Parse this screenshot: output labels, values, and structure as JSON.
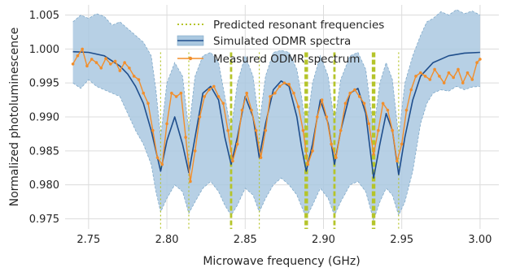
{
  "chart_data": {
    "type": "line",
    "xlabel": "Microwave frequency (GHz)",
    "ylabel": "Normalized photoluminescence",
    "xlim": [
      2.735,
      3.012
    ],
    "ylim": [
      0.9735,
      1.0065
    ],
    "x_ticks": [
      2.75,
      2.8,
      2.85,
      2.9,
      2.95,
      3.0
    ],
    "x_tick_labels": [
      "2.75",
      "2.80",
      "2.85",
      "2.90",
      "2.95",
      "3.00"
    ],
    "y_ticks": [
      0.975,
      0.98,
      0.985,
      0.99,
      0.995,
      1.0,
      1.005
    ],
    "y_tick_labels": [
      "0.975",
      "0.980",
      "0.985",
      "0.990",
      "0.995",
      "1.000",
      "1.005"
    ],
    "grid": true,
    "legend_position": "top-center",
    "legend": [
      {
        "label": "Predicted resonant frequencies",
        "style": "dotted",
        "color": "#b5c42a"
      },
      {
        "label": "Simulated ODMR spectra",
        "style": "band",
        "color": "#aac8e0"
      },
      {
        "label": "Measured ODMR spectrum",
        "style": "line",
        "color": "#f28e2b"
      }
    ],
    "colors": {
      "simulated_line": "#1f4e8c",
      "simulated_band": "#aac8e0",
      "band_edge": "#7fa9c9",
      "measured": "#f28e2b",
      "resonance": "#b5c42a",
      "grid": "#dcdcdc"
    },
    "series": [
      {
        "name": "Predicted resonant frequencies",
        "kind": "vlines",
        "x": [
          2.796,
          2.814,
          2.841,
          2.859,
          2.889,
          2.907,
          2.932,
          2.948
        ],
        "weight": [
          1,
          1,
          2,
          1,
          3,
          2,
          3,
          1
        ],
        "ymin": 0.9735,
        "ymax": 0.9995
      },
      {
        "name": "Simulated ODMR spectra",
        "kind": "curve",
        "x": [
          2.74,
          2.75,
          2.76,
          2.77,
          2.775,
          2.78,
          2.785,
          2.79,
          2.793,
          2.796,
          2.8,
          2.805,
          2.81,
          2.814,
          2.818,
          2.823,
          2.828,
          2.833,
          2.837,
          2.841,
          2.845,
          2.85,
          2.855,
          2.859,
          2.863,
          2.868,
          2.873,
          2.878,
          2.883,
          2.886,
          2.889,
          2.893,
          2.898,
          2.903,
          2.907,
          2.911,
          2.917,
          2.922,
          2.927,
          2.932,
          2.936,
          2.94,
          2.944,
          2.948,
          2.952,
          2.957,
          2.962,
          2.97,
          2.98,
          2.99,
          3.0
        ],
        "y": [
          0.9996,
          0.9995,
          0.999,
          0.9975,
          0.9963,
          0.9945,
          0.992,
          0.988,
          0.985,
          0.982,
          0.9865,
          0.99,
          0.986,
          0.9818,
          0.987,
          0.9935,
          0.9945,
          0.9925,
          0.987,
          0.983,
          0.987,
          0.993,
          0.99,
          0.984,
          0.989,
          0.994,
          0.9953,
          0.9945,
          0.99,
          0.9855,
          0.982,
          0.986,
          0.9925,
          0.989,
          0.983,
          0.988,
          0.9935,
          0.9942,
          0.9905,
          0.981,
          0.986,
          0.9905,
          0.988,
          0.9815,
          0.987,
          0.9925,
          0.996,
          0.998,
          0.999,
          0.9994,
          0.9995
        ]
      },
      {
        "name": "Simulated band upper",
        "kind": "band_upper",
        "x": [
          2.74,
          2.745,
          2.75,
          2.755,
          2.76,
          2.765,
          2.77,
          2.775,
          2.78,
          2.785,
          2.79,
          2.793,
          2.796,
          2.8,
          2.805,
          2.81,
          2.814,
          2.818,
          2.823,
          2.828,
          2.833,
          2.837,
          2.841,
          2.845,
          2.85,
          2.855,
          2.859,
          2.863,
          2.868,
          2.873,
          2.878,
          2.883,
          2.886,
          2.889,
          2.893,
          2.898,
          2.903,
          2.907,
          2.911,
          2.917,
          2.922,
          2.927,
          2.932,
          2.936,
          2.94,
          2.944,
          2.948,
          2.952,
          2.957,
          2.962,
          2.966,
          2.97,
          2.975,
          2.98,
          2.985,
          2.99,
          2.995,
          3.0
        ],
        "y": [
          1.004,
          1.005,
          1.0045,
          1.0052,
          1.0048,
          1.0035,
          1.004,
          1.003,
          1.002,
          1.001,
          0.999,
          0.994,
          0.987,
          0.995,
          0.998,
          0.996,
          0.988,
          0.996,
          0.999,
          0.9995,
          0.998,
          0.993,
          0.988,
          0.995,
          0.999,
          0.996,
          0.989,
          0.996,
          0.9995,
          0.9998,
          0.9995,
          0.997,
          0.993,
          0.988,
          0.995,
          0.999,
          0.996,
          0.989,
          0.9955,
          0.999,
          0.9995,
          0.997,
          0.988,
          0.995,
          0.998,
          0.9955,
          0.987,
          0.995,
          0.999,
          1.002,
          1.004,
          1.0045,
          1.0055,
          1.005,
          1.0058,
          1.0052,
          1.0056,
          1.005
        ]
      },
      {
        "name": "Simulated band lower",
        "kind": "band_lower",
        "x": [
          2.74,
          2.745,
          2.75,
          2.755,
          2.76,
          2.765,
          2.77,
          2.775,
          2.78,
          2.785,
          2.79,
          2.793,
          2.796,
          2.8,
          2.805,
          2.81,
          2.814,
          2.818,
          2.823,
          2.828,
          2.833,
          2.837,
          2.841,
          2.845,
          2.85,
          2.855,
          2.859,
          2.863,
          2.868,
          2.873,
          2.878,
          2.883,
          2.886,
          2.889,
          2.893,
          2.898,
          2.903,
          2.907,
          2.911,
          2.917,
          2.922,
          2.927,
          2.932,
          2.936,
          2.94,
          2.944,
          2.948,
          2.952,
          2.957,
          2.962,
          2.966,
          2.97,
          2.975,
          2.98,
          2.985,
          2.99,
          2.995,
          3.0
        ],
        "y": [
          0.995,
          0.9942,
          0.9955,
          0.9945,
          0.994,
          0.9935,
          0.993,
          0.9905,
          0.988,
          0.986,
          0.983,
          0.979,
          0.976,
          0.978,
          0.98,
          0.979,
          0.9758,
          0.9775,
          0.9795,
          0.9805,
          0.979,
          0.977,
          0.9755,
          0.977,
          0.9795,
          0.9785,
          0.976,
          0.978,
          0.98,
          0.981,
          0.98,
          0.9785,
          0.9768,
          0.9752,
          0.977,
          0.9795,
          0.978,
          0.9755,
          0.9775,
          0.98,
          0.9805,
          0.979,
          0.9748,
          0.9775,
          0.9795,
          0.9785,
          0.9755,
          0.9775,
          0.982,
          0.989,
          0.992,
          0.9935,
          0.994,
          0.9938,
          0.9945,
          0.994,
          0.9944,
          0.9945
        ]
      },
      {
        "name": "Measured ODMR spectrum",
        "kind": "markers_line",
        "x": [
          2.74,
          2.743,
          2.746,
          2.749,
          2.752,
          2.755,
          2.758,
          2.761,
          2.764,
          2.767,
          2.77,
          2.773,
          2.776,
          2.779,
          2.782,
          2.785,
          2.788,
          2.791,
          2.794,
          2.797,
          2.8,
          2.803,
          2.806,
          2.809,
          2.812,
          2.815,
          2.818,
          2.821,
          2.824,
          2.827,
          2.83,
          2.833,
          2.836,
          2.839,
          2.842,
          2.845,
          2.848,
          2.851,
          2.854,
          2.857,
          2.86,
          2.863,
          2.866,
          2.869,
          2.872,
          2.875,
          2.878,
          2.881,
          2.884,
          2.887,
          2.89,
          2.893,
          2.896,
          2.899,
          2.902,
          2.905,
          2.908,
          2.911,
          2.914,
          2.917,
          2.92,
          2.923,
          2.926,
          2.929,
          2.932,
          2.935,
          2.938,
          2.941,
          2.944,
          2.947,
          2.95,
          2.953,
          2.956,
          2.959,
          2.962,
          2.965,
          2.968,
          2.971,
          2.974,
          2.977,
          2.98,
          2.983,
          2.986,
          2.989,
          2.992,
          2.995,
          2.998,
          3.0
        ],
        "y": [
          0.9978,
          0.999,
          1.0,
          0.9975,
          0.9985,
          0.998,
          0.9972,
          0.9986,
          0.9978,
          0.9982,
          0.9968,
          0.998,
          0.9972,
          0.996,
          0.9955,
          0.9935,
          0.992,
          0.988,
          0.984,
          0.983,
          0.989,
          0.9935,
          0.993,
          0.9935,
          0.987,
          0.9805,
          0.985,
          0.99,
          0.993,
          0.994,
          0.9945,
          0.993,
          0.992,
          0.988,
          0.9835,
          0.986,
          0.991,
          0.9935,
          0.991,
          0.988,
          0.984,
          0.988,
          0.993,
          0.9935,
          0.9945,
          0.995,
          0.9948,
          0.9935,
          0.9915,
          0.988,
          0.983,
          0.985,
          0.99,
          0.9925,
          0.99,
          0.986,
          0.984,
          0.988,
          0.992,
          0.9935,
          0.994,
          0.993,
          0.992,
          0.989,
          0.9845,
          0.988,
          0.992,
          0.991,
          0.988,
          0.9835,
          0.986,
          0.991,
          0.994,
          0.996,
          0.9965,
          0.996,
          0.9955,
          0.997,
          0.996,
          0.995,
          0.9965,
          0.9958,
          0.997,
          0.995,
          0.9965,
          0.9955,
          0.998,
          0.9985
        ]
      }
    ]
  }
}
